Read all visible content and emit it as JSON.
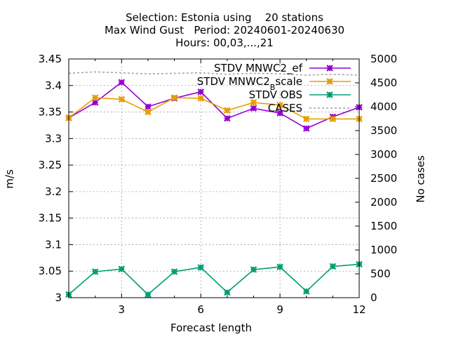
{
  "chart_data": {
    "type": "line",
    "title_lines": [
      "Selection: Estonia using    20 stations",
      "Max Wind Gust   Period: 20240601-20240630",
      "Hours: 00,03,...,21"
    ],
    "xlabel": "Forecast length",
    "ylabel": "m/s",
    "y2label": "No cases",
    "xlim": [
      1,
      12
    ],
    "ylim": [
      3.0,
      3.45
    ],
    "y2lim": [
      0,
      5000
    ],
    "x_ticks": [
      3,
      6,
      9,
      12
    ],
    "y_ticks": [
      "3",
      "3.05",
      "3.1",
      "3.15",
      "3.2",
      "3.25",
      "3.3",
      "3.35",
      "3.4",
      "3.45"
    ],
    "y2_ticks": [
      "0",
      "500",
      "1000",
      "1500",
      "2000",
      "2500",
      "3000",
      "3500",
      "4000",
      "4500",
      "5000"
    ],
    "grid": true,
    "legend_position": "top-right",
    "x": [
      1,
      2,
      3,
      4,
      5,
      6,
      7,
      8,
      9,
      10,
      11,
      12
    ],
    "series": [
      {
        "name": "STDV MNWC2_ef",
        "legend_main": "STDV MNWC2_ef",
        "color": "#9400d3",
        "marker": "star",
        "axis": "y1",
        "values": [
          3.339,
          3.368,
          3.406,
          3.36,
          3.376,
          3.388,
          3.338,
          3.357,
          3.348,
          3.319,
          3.341,
          3.359
        ]
      },
      {
        "name": "STDV MNWC2_Bscale",
        "legend_main": "STDV MNWC2",
        "legend_sub": "B",
        "legend_tail": "scale",
        "color": "#e69f00",
        "marker": "star",
        "axis": "y1",
        "values": [
          3.339,
          3.377,
          3.374,
          3.35,
          3.377,
          3.376,
          3.353,
          3.368,
          3.363,
          3.337,
          3.337,
          3.337
        ]
      },
      {
        "name": "STDV OBS",
        "legend_main": "STDV OBS",
        "color": "#009e73",
        "marker": "star",
        "axis": "y1",
        "values": [
          3.006,
          3.049,
          3.054,
          3.006,
          3.049,
          3.057,
          3.01,
          3.053,
          3.058,
          3.012,
          3.059,
          3.063
        ]
      },
      {
        "name": "CASES",
        "legend_main": "CASES",
        "color": "#a0a0a0",
        "marker": "none",
        "dashed": true,
        "axis": "y2",
        "values": [
          4700,
          4730,
          4710,
          4690,
          4700,
          4710,
          4680,
          4700,
          4690,
          4660,
          4680,
          4660
        ]
      }
    ]
  }
}
